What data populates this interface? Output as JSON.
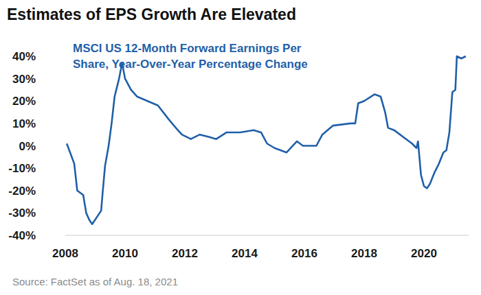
{
  "chart_data": {
    "type": "line",
    "title": "Estimates of EPS Growth Are Elevated",
    "subtitle": "MSCI US 12-Month Forward Earnings Per Share, Year-Over-Year Percentage Change",
    "source": "Source: FactSet as of Aug. 18, 2021",
    "color": "#1f5fa8",
    "grid": false,
    "x": [
      2008.05,
      2008.3,
      2008.4,
      2008.6,
      2008.7,
      2008.8,
      2008.9,
      2009.1,
      2009.2,
      2009.25,
      2009.33,
      2009.45,
      2009.55,
      2009.65,
      2009.8,
      2009.9,
      2010.0,
      2010.2,
      2010.4,
      2010.75,
      2011.1,
      2011.45,
      2011.7,
      2011.9,
      2012.2,
      2012.5,
      2012.8,
      2013.05,
      2013.4,
      2013.85,
      2014.3,
      2014.55,
      2014.75,
      2015.0,
      2015.4,
      2015.75,
      2015.95,
      2016.4,
      2016.6,
      2016.95,
      2017.55,
      2017.7,
      2017.8,
      2018.0,
      2018.35,
      2018.55,
      2018.7,
      2018.8,
      2019.0,
      2019.4,
      2019.6,
      2019.75,
      2019.8,
      2019.9,
      2020.0,
      2020.1,
      2020.2,
      2020.35,
      2020.5,
      2020.65,
      2020.75,
      2020.85,
      2020.95,
      2021.05,
      2021.1,
      2021.25,
      2021.4
    ],
    "values": [
      1,
      -8,
      -20,
      -22,
      -30,
      -33,
      -35,
      -31,
      -29,
      -21,
      -9,
      0,
      10,
      22,
      30,
      37,
      30,
      25,
      22,
      20,
      18,
      12,
      8,
      5,
      3,
      5,
      4,
      3,
      6,
      6,
      7,
      6,
      1,
      -1,
      -3,
      2,
      0,
      0,
      5,
      9,
      10,
      10,
      19,
      20,
      23,
      22,
      15,
      8,
      7,
      3,
      1,
      -1,
      2,
      -13,
      -18,
      -19,
      -17,
      -12,
      -8,
      -3,
      -2,
      6,
      24,
      25,
      40,
      39,
      40
    ],
    "xlim": [
      2008,
      2021.5
    ],
    "xticks": [
      2008,
      2010,
      2012,
      2014,
      2016,
      2018,
      2020
    ],
    "ylim": [
      -40,
      40
    ],
    "yticks": [
      {
        "value": -40,
        "label": "-40%"
      },
      {
        "value": -30,
        "label": "-30%"
      },
      {
        "value": -20,
        "label": "-20%"
      },
      {
        "value": -10,
        "label": "-10%"
      },
      {
        "value": 0,
        "label": "0%"
      },
      {
        "value": 10,
        "label": "10%"
      },
      {
        "value": 20,
        "label": "20%"
      },
      {
        "value": 30,
        "label": "30%"
      },
      {
        "value": 40,
        "label": "40%"
      }
    ]
  }
}
